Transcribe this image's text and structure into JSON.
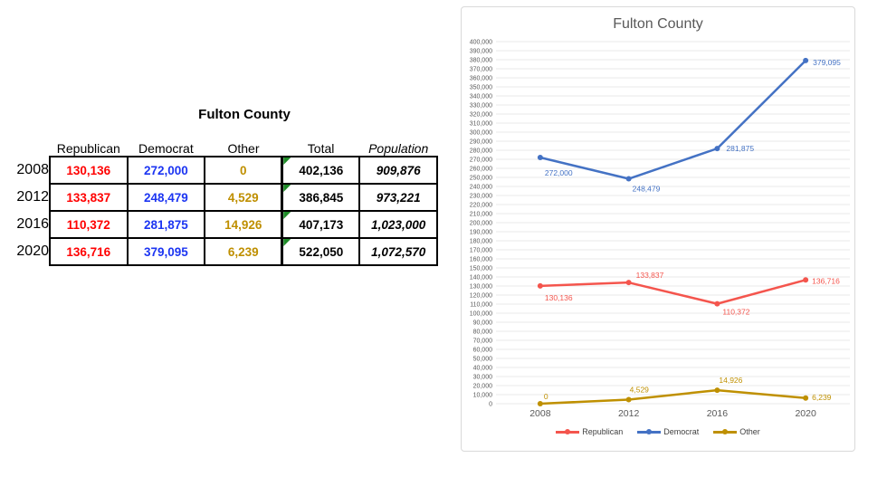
{
  "table": {
    "title": "Fulton County",
    "flag_color": "#1E8C28",
    "columns": [
      {
        "key": "republican",
        "label": "Republican",
        "color": "#FF0000"
      },
      {
        "key": "democrat",
        "label": "Democrat",
        "color": "#1C35F2"
      },
      {
        "key": "other",
        "label": "Other",
        "color": "#BF8F00"
      },
      {
        "key": "total",
        "label": "Total",
        "color": "#000000",
        "corner_flag": true
      },
      {
        "key": "population",
        "label": "Population",
        "color": "#000000",
        "italic": true
      }
    ],
    "rows": [
      {
        "year": "2008",
        "republican": "130,136",
        "democrat": "272,000",
        "other": "0",
        "total": "402,136",
        "population": "909,876"
      },
      {
        "year": "2012",
        "republican": "133,837",
        "democrat": "248,479",
        "other": "4,529",
        "total": "386,845",
        "population": "973,221"
      },
      {
        "year": "2016",
        "republican": "110,372",
        "democrat": "281,875",
        "other": "14,926",
        "total": "407,173",
        "population": "1,023,000"
      },
      {
        "year": "2020",
        "republican": "136,716",
        "democrat": "379,095",
        "other": "6,239",
        "total": "522,050",
        "population": "1,072,570"
      }
    ]
  },
  "chart_data": {
    "type": "line",
    "title": "Fulton County",
    "categories": [
      "2008",
      "2012",
      "2016",
      "2020"
    ],
    "series": [
      {
        "name": "Republican",
        "color": "#F4554D",
        "values": [
          130136,
          133837,
          110372,
          136716
        ],
        "label_offsets": [
          [
            5,
            16
          ],
          [
            8,
            -5
          ],
          [
            6,
            12
          ],
          [
            7,
            4
          ]
        ]
      },
      {
        "name": "Democrat",
        "color": "#4472C4",
        "values": [
          272000,
          248479,
          281875,
          379095
        ],
        "label_offsets": [
          [
            5,
            20
          ],
          [
            4,
            14
          ],
          [
            10,
            3
          ],
          [
            8,
            5
          ]
        ]
      },
      {
        "name": "Other",
        "color": "#BF9000",
        "values": [
          0,
          4529,
          14926,
          6239
        ],
        "label_offsets": [
          [
            4,
            -5
          ],
          [
            1,
            -8
          ],
          [
            2,
            -8
          ],
          [
            7,
            2
          ]
        ]
      }
    ],
    "ylim": [
      0,
      400000
    ],
    "ytick_step": 10000,
    "grid": true,
    "gridline_color": "#E8E8E8",
    "axis_text_color": "#595959",
    "legend_position": "bottom",
    "data_labels": true
  }
}
